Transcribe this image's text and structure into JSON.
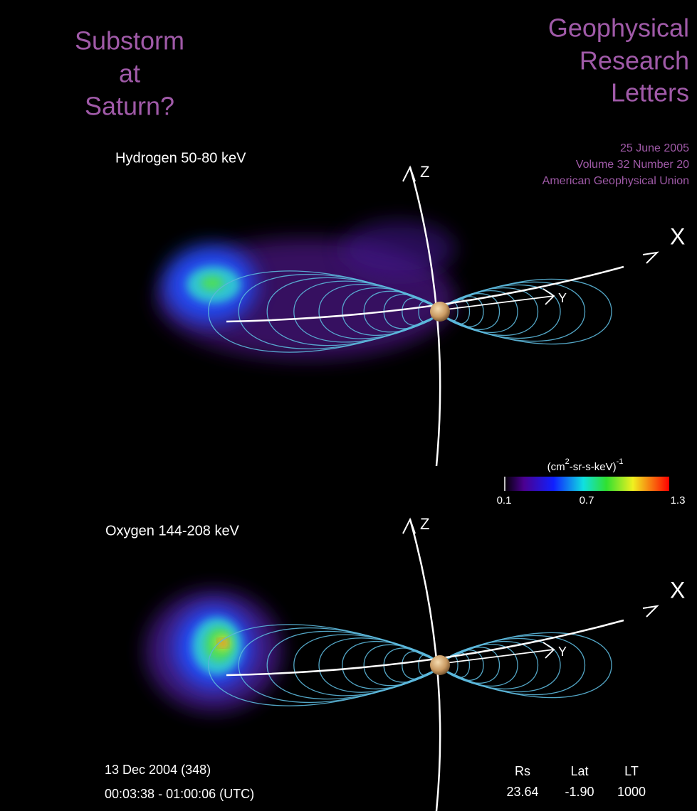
{
  "headline": {
    "lines": [
      "Substorm",
      "at",
      "Saturn?"
    ]
  },
  "journal": {
    "title_lines": [
      "Geophysical",
      "Research",
      "Letters"
    ],
    "date": "25 June 2005",
    "volume": "Volume 32 Number 20",
    "publisher": "American Geophysical Union"
  },
  "panels": [
    {
      "label": "Hydrogen  50-80 keV",
      "axes": {
        "z": "Z",
        "x": "X",
        "y": "Y"
      }
    },
    {
      "label": "Oxygen  144-208 keV",
      "axes": {
        "z": "Z",
        "x": "X",
        "y": "Y"
      }
    }
  ],
  "colorbar": {
    "unit_open": "(cm",
    "unit_power": "2",
    "unit_rest": "-sr-s-keV)",
    "unit_exponent": "-1",
    "ticks": [
      "0.1",
      "0.7",
      "1.3"
    ]
  },
  "footer": {
    "date": "13 Dec 2004 (348)",
    "time": "00:03:38 - 01:00:06 (UTC)",
    "columns": [
      {
        "heading": "Rs",
        "value": "23.64"
      },
      {
        "heading": "Lat",
        "value": "-1.90"
      },
      {
        "heading": "LT",
        "value": "1000"
      }
    ]
  }
}
